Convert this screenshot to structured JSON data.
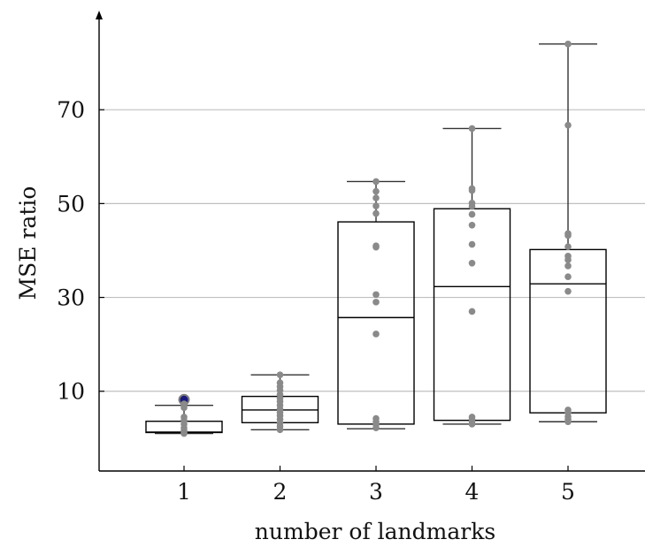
{
  "chart_data": {
    "type": "box",
    "title": "",
    "xlabel": "number of landmarks",
    "ylabel": "MSE ratio",
    "categories": [
      "1",
      "2",
      "3",
      "4",
      "5"
    ],
    "y_ticks": [
      10,
      30,
      50,
      70
    ],
    "y_tick_labels": [
      "10",
      "30",
      "50",
      "70"
    ],
    "ylim": [
      -7,
      90
    ],
    "grid": "horizontal",
    "colors": {
      "box": "#000000",
      "whisker": "#333333",
      "grid": "#bfbfbf",
      "points": "#8a8a8a",
      "highlight_fill": "#1a1a80",
      "highlight_stroke": "#7f7f7f"
    },
    "boxes": [
      {
        "category": "1",
        "whisker_low": 1.0,
        "q1": 1.2,
        "median": 1.3,
        "q3": 3.6,
        "whisker_high": 7.0,
        "points": [
          1.0,
          1.2,
          1.6,
          2.2,
          3.0,
          3.8,
          4.5,
          6.5,
          7.3
        ],
        "highlight_points": [
          8.2
        ]
      },
      {
        "category": "2",
        "whisker_low": 1.8,
        "q1": 3.3,
        "median": 6.0,
        "q3": 8.9,
        "whisker_high": 13.5,
        "points": [
          1.8,
          2.5,
          3.2,
          4.0,
          4.8,
          5.5,
          6.2,
          7.0,
          7.8,
          8.5,
          9.3,
          10.2,
          11.0,
          11.8,
          13.5
        ],
        "highlight_points": []
      },
      {
        "category": "3",
        "whisker_low": 2.0,
        "q1": 3.0,
        "median": 25.7,
        "q3": 46.1,
        "whisker_high": 54.7,
        "points": [
          2.2,
          2.9,
          3.5,
          4.2,
          22.2,
          29.0,
          30.6,
          40.7,
          41.0,
          47.9,
          49.5,
          51.2,
          52.6,
          54.7
        ],
        "highlight_points": []
      },
      {
        "category": "4",
        "whisker_low": 3.0,
        "q1": 3.8,
        "median": 32.3,
        "q3": 48.9,
        "whisker_high": 66.0,
        "points": [
          3.0,
          3.5,
          4.0,
          4.5,
          27.0,
          37.3,
          41.3,
          45.4,
          47.7,
          49.4,
          50.1,
          52.8,
          53.2,
          66.0
        ],
        "highlight_points": []
      },
      {
        "category": "5",
        "whisker_low": 3.5,
        "q1": 5.4,
        "median": 32.9,
        "q3": 40.2,
        "whisker_high": 84.0,
        "points": [
          3.5,
          4.0,
          4.6,
          5.4,
          6.0,
          31.3,
          34.4,
          36.7,
          38.0,
          38.8,
          40.8,
          43.2,
          43.6,
          66.7,
          84.0
        ],
        "highlight_points": []
      }
    ]
  }
}
